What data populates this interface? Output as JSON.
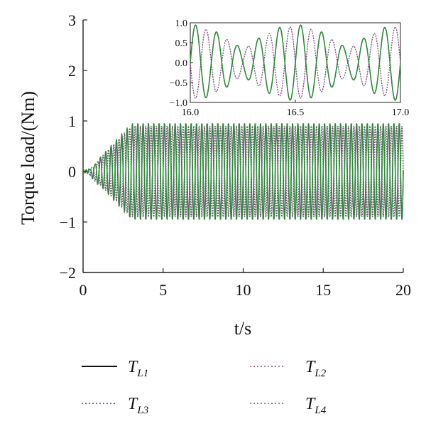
{
  "chart_data": {
    "type": "line",
    "title": "",
    "xlabel": "t/s",
    "ylabel": "Torque load/(Nm)",
    "xlim": [
      0,
      20
    ],
    "ylim": [
      -2,
      3
    ],
    "xticks": [
      "0",
      "5",
      "10",
      "15",
      "20"
    ],
    "yticks": [
      "3",
      "2",
      "1",
      "0",
      "−1",
      "−2"
    ],
    "grid": false,
    "legend_position": "bottom",
    "series": [
      {
        "name": "T",
        "subscript": "L1",
        "color": "#111111",
        "style": "solid",
        "amplitude": 0.95,
        "frequency_hz": 3.0,
        "phase": 0.0
      },
      {
        "name": "T",
        "subscript": "L2",
        "color": "#8b4a7e",
        "style": "dotted",
        "amplitude": 0.9,
        "frequency_hz": 3.0,
        "phase": 3.14
      },
      {
        "name": "T",
        "subscript": "L3",
        "color": "#3a3aa6",
        "style": "dotted",
        "amplitude": 0.9,
        "frequency_hz": 3.0,
        "phase": 3.14
      },
      {
        "name": "T",
        "subscript": "L4",
        "color": "#2e8b3a",
        "style": "dotted",
        "amplitude": 0.95,
        "frequency_hz": 3.0,
        "phase": 0.0
      }
    ],
    "inset": {
      "xlim": [
        16.0,
        17.0
      ],
      "ylim": [
        -1.0,
        1.0
      ],
      "xticks": [
        "16.0",
        "16.5",
        "17.0"
      ],
      "yticks": [
        "1.0",
        "0.5",
        "0.0",
        "−0.5",
        "−1.0"
      ]
    }
  }
}
